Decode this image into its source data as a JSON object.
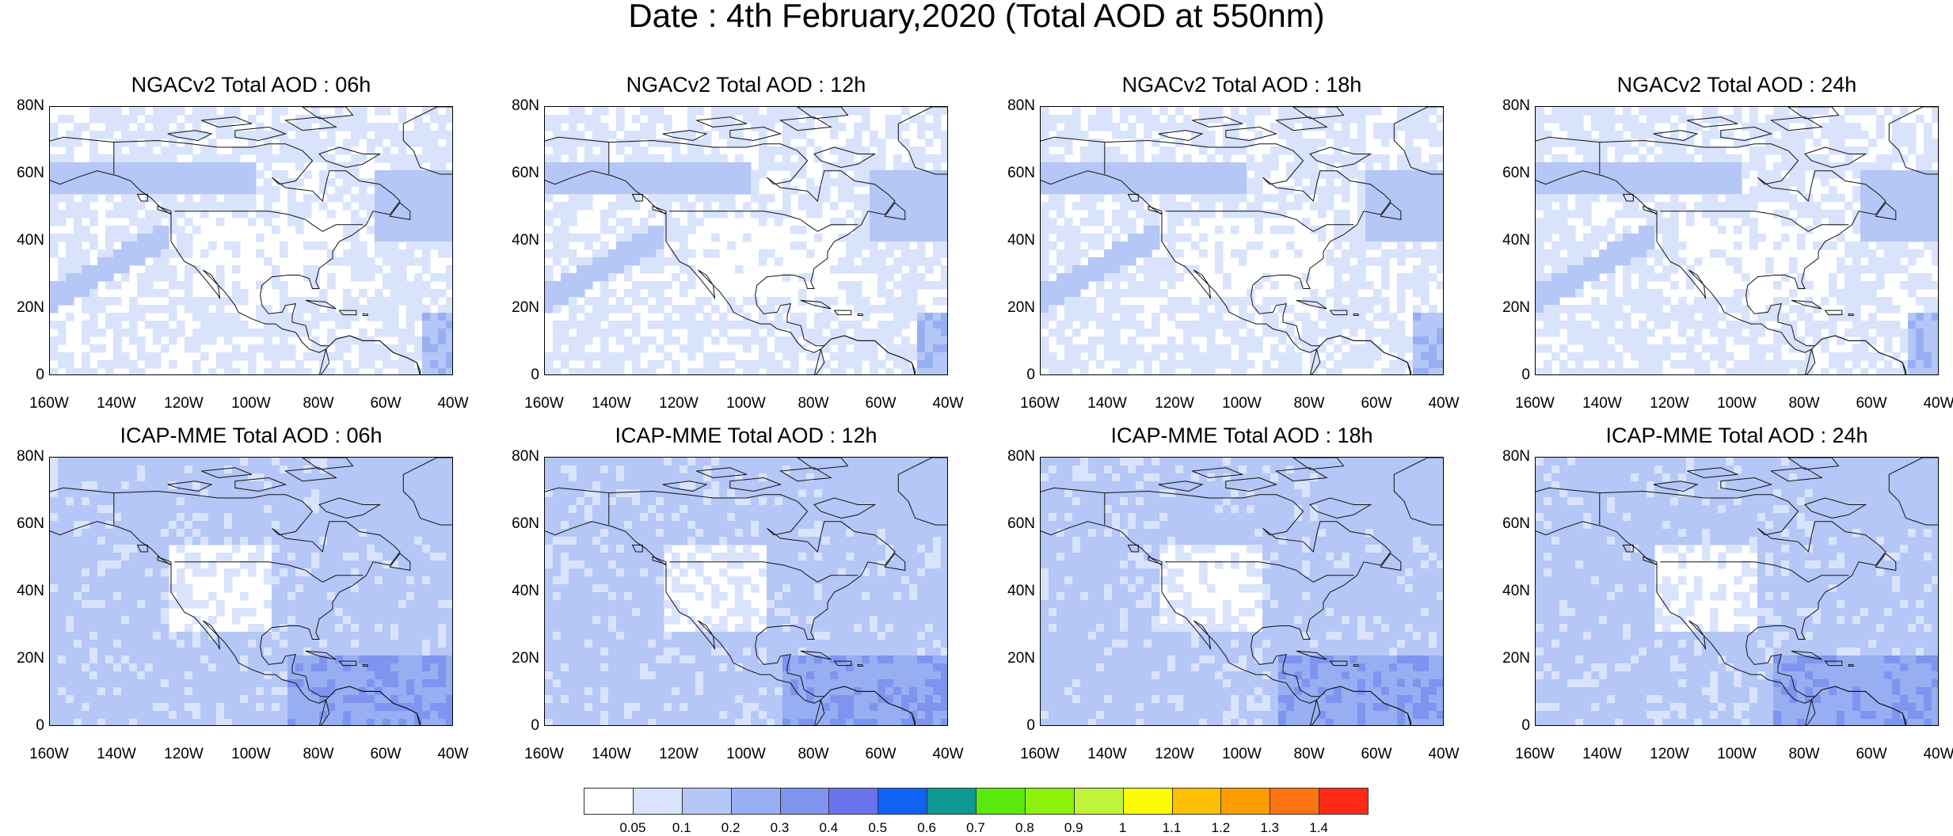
{
  "title": "Date : 4th February,2020 (Total AOD at 550nm)",
  "lat_ticks": [
    "80N",
    "60N",
    "40N",
    "20N",
    "0"
  ],
  "lon_ticks": [
    "160W",
    "140W",
    "120W",
    "100W",
    "80W",
    "60W",
    "40W"
  ],
  "panels": [
    {
      "title": "NGACv2 Total AOD : 06h",
      "base_level": 1,
      "hot_spot": "east"
    },
    {
      "title": "NGACv2 Total AOD : 12h",
      "base_level": 1,
      "hot_spot": "east"
    },
    {
      "title": "NGACv2 Total AOD : 18h",
      "base_level": 1,
      "hot_spot": "east"
    },
    {
      "title": "NGACv2 Total AOD : 24h",
      "base_level": 1,
      "hot_spot": "east"
    },
    {
      "title": "ICAP-MME Total AOD : 06h",
      "base_level": 2,
      "hot_spot": "south"
    },
    {
      "title": "ICAP-MME Total AOD : 12h",
      "base_level": 2,
      "hot_spot": "south"
    },
    {
      "title": "ICAP-MME Total AOD : 18h",
      "base_level": 2,
      "hot_spot": "south"
    },
    {
      "title": "ICAP-MME Total AOD : 24h",
      "base_level": 2,
      "hot_spot": "south"
    }
  ],
  "colorbar": {
    "labels": [
      "0.05",
      "0.1",
      "0.2",
      "0.3",
      "0.4",
      "0.5",
      "0.6",
      "0.7",
      "0.8",
      "0.9",
      "1",
      "1.1",
      "1.2",
      "1.3",
      "1.4"
    ],
    "colors": [
      "#ffffff",
      "#d9e3fb",
      "#b4c7f6",
      "#97aff2",
      "#7f94ee",
      "#6b73ec",
      "#0f63f4",
      "#0d9a93",
      "#58ea0c",
      "#8cf20c",
      "#bff43b",
      "#fdfd00",
      "#fcc000",
      "#fd9d00",
      "#fd7410",
      "#fd2b16"
    ]
  }
}
